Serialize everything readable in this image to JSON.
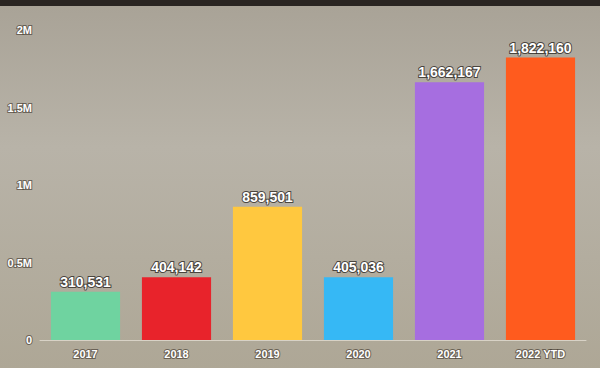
{
  "chart_data": {
    "type": "bar",
    "categories": [
      "2017",
      "2018",
      "2019",
      "2020",
      "2021",
      "2022 YTD"
    ],
    "values": [
      310531,
      404142,
      859501,
      405036,
      1662167,
      1822160
    ],
    "value_labels": [
      "310,531",
      "404,142",
      "859,501",
      "405,036",
      "1,662,167",
      "1,822,160"
    ],
    "colors": [
      "#6fd3a0",
      "#e8232b",
      "#ffc83f",
      "#36b8f5",
      "#a66ee0",
      "#ff5b1e"
    ],
    "ylim": [
      0,
      2000000
    ],
    "yticks": [
      0,
      {
        "value": 500000,
        "label": "0.5M"
      },
      {
        "value": 1000000,
        "label": "1M"
      },
      {
        "value": 1500000,
        "label": "1.5M"
      },
      {
        "value": 2000000,
        "label": "2M"
      }
    ],
    "grid": false,
    "data_labels": true
  }
}
